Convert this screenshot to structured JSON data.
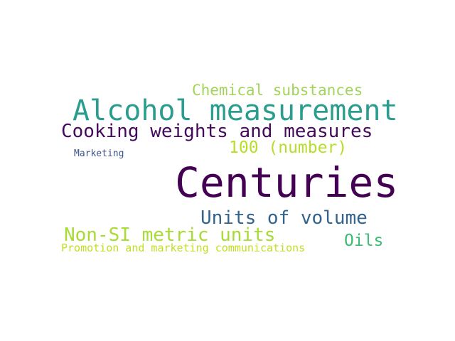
{
  "words": [
    {
      "text": "Centuries",
      "color": "#440154"
    },
    {
      "text": "Alcohol measurement",
      "color": "#2a9d8f"
    },
    {
      "text": "Cooking weights and measures",
      "color": "#450a5c"
    },
    {
      "text": "Chemical substances",
      "color": "#a2d45a"
    },
    {
      "text": "100 (number)",
      "color": "#b8de29"
    },
    {
      "text": "Units of volume",
      "color": "#33638d"
    },
    {
      "text": "Non-SI metric units",
      "color": "#a8db34"
    },
    {
      "text": "Oils",
      "color": "#3cbb75"
    },
    {
      "text": "Promotion and marketing communications",
      "color": "#c2df23"
    },
    {
      "text": "Marketing",
      "color": "#3b528b"
    }
  ]
}
